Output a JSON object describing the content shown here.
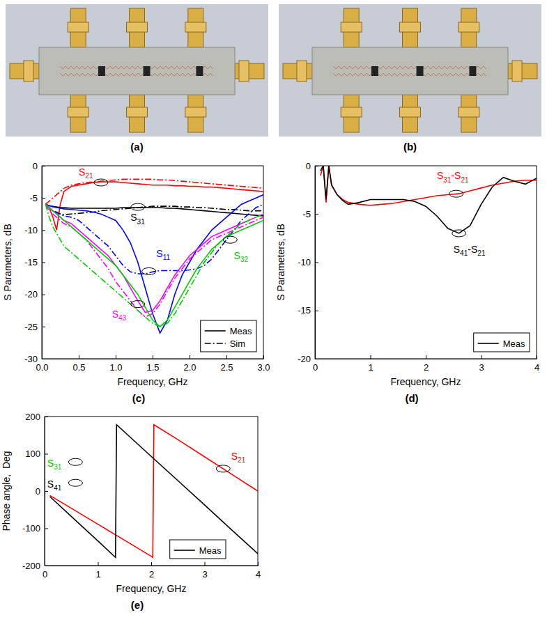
{
  "images": [
    {
      "label": "(a)"
    },
    {
      "label": "(b)"
    }
  ],
  "chart_data": [
    {
      "type": "line",
      "label": "(c)",
      "xlabel": "Frequency, GHz",
      "ylabel": "S Parameters, dB",
      "xlim": [
        0,
        3
      ],
      "ylim": [
        -30,
        0
      ],
      "xticks": [
        {
          "value": 0,
          "label": "0.0"
        },
        0.5,
        {
          "value": 1,
          "label": "1.0"
        },
        1.5,
        {
          "value": 2,
          "label": "2.0"
        },
        2.5,
        {
          "value": 3,
          "label": "3.0"
        }
      ],
      "yticks": [
        -30,
        -25,
        -20,
        -15,
        -10,
        -5,
        0
      ],
      "grid": false,
      "legend": "lower right",
      "legend_entries": [
        {
          "name": "Meas",
          "line_style": "solid"
        },
        {
          "name": "Sim",
          "line_style": "dashdot"
        }
      ],
      "x": [
        0.05,
        0.1,
        0.15,
        0.2,
        0.25,
        0.3,
        0.4,
        0.5,
        0.6,
        0.7,
        0.8,
        0.9,
        1.0,
        1.1,
        1.2,
        1.3,
        1.4,
        1.5,
        1.6,
        1.7,
        1.8,
        1.9,
        2.0,
        2.1,
        2.2,
        2.3,
        2.4,
        2.5,
        2.6,
        2.7,
        2.8,
        2.9,
        3.0
      ],
      "series": [
        {
          "color": "#ff0000",
          "line_style": "solid",
          "values": [
            -6,
            -6.5,
            -8,
            -10,
            -6,
            -4,
            -3.2,
            -3,
            -2.8,
            -2.6,
            -2.5,
            -2.5,
            -2.5,
            -2.6,
            -2.7,
            -2.8,
            -2.9,
            -3,
            -3,
            -3,
            -3.1,
            -3.1,
            -3.2,
            -3.2,
            -3.3,
            -3.3,
            -3.4,
            -3.5,
            -3.6,
            -3.7,
            -3.8,
            -3.9,
            -4
          ]
        },
        {
          "color": "#ff0000",
          "line_style": "dashdot",
          "values": [
            -6,
            -5.5,
            -5,
            -4.5,
            -4,
            -3.5,
            -3,
            -2.8,
            -2.6,
            -2.5,
            -2.4,
            -2.3,
            -2.2,
            -2.1,
            -2.1,
            -2.1,
            -2.1,
            -2.1,
            -2.2,
            -2.2,
            -2.3,
            -2.4,
            -2.5,
            -2.6,
            -2.7,
            -2.8,
            -2.9,
            -3,
            -3.1,
            -3.2,
            -3.3,
            -3.4,
            -3.5
          ]
        },
        {
          "color": "#000000",
          "line_style": "solid",
          "values": [
            -6,
            -6.2,
            -6.3,
            -6.4,
            -6.5,
            -6.5,
            -6.6,
            -6.6,
            -6.6,
            -6.6,
            -6.6,
            -6.6,
            -6.6,
            -6.5,
            -6.5,
            -6.5,
            -6.5,
            -6.5,
            -6.5,
            -6.6,
            -6.6,
            -6.7,
            -6.8,
            -6.9,
            -7,
            -7.1,
            -7.2,
            -7.3,
            -7.4,
            -7.5,
            -7.6,
            -7.7,
            -7.8
          ]
        },
        {
          "color": "#000000",
          "line_style": "dashdot",
          "values": [
            -6,
            -6.5,
            -7,
            -7.3,
            -7.5,
            -7.6,
            -7.5,
            -7.4,
            -7.3,
            -7.2,
            -7.0,
            -6.9,
            -6.8,
            -6.7,
            -6.6,
            -6.5,
            -6.4,
            -6.3,
            -6.3,
            -6.3,
            -6.3,
            -6.4,
            -6.4,
            -6.5,
            -6.5,
            -6.6,
            -6.7,
            -6.8,
            -6.8,
            -6.9,
            -7,
            -7,
            -7
          ]
        },
        {
          "color": "#0000ff",
          "line_style": "solid",
          "values": [
            -6,
            -6.2,
            -6.4,
            -6.5,
            -6.6,
            -6.7,
            -6.8,
            -6.9,
            -7,
            -7.2,
            -7.5,
            -8,
            -8.5,
            -10,
            -12,
            -15,
            -19,
            -23,
            -26,
            -24,
            -20,
            -17,
            -15,
            -13,
            -11.5,
            -10,
            -9,
            -8,
            -7,
            -6,
            -5.5,
            -5,
            -4.5
          ]
        },
        {
          "color": "#0000ff",
          "line_style": "dashdot",
          "values": [
            -6,
            -6.5,
            -7,
            -7.2,
            -7.5,
            -7.8,
            -8,
            -8.5,
            -9.5,
            -10.5,
            -11.5,
            -12.5,
            -14,
            -15.5,
            -16.5,
            -16.8,
            -16.8,
            -16.5,
            -16.3,
            -16.3,
            -16.3,
            -16.3,
            -16.2,
            -16,
            -15.5,
            -14.5,
            -13,
            -11.5,
            -10,
            -8.5,
            -7.5,
            -6.5,
            -6
          ]
        },
        {
          "color": "#ff00ff",
          "line_style": "solid",
          "values": [
            -6,
            -6.5,
            -7,
            -7.5,
            -8,
            -8.5,
            -9,
            -10,
            -11,
            -12,
            -13,
            -14,
            -15.5,
            -17,
            -19,
            -21,
            -22.8,
            -22.5,
            -21,
            -19,
            -17,
            -15.5,
            -14,
            -13,
            -12,
            -11,
            -10.5,
            -10,
            -9.5,
            -9,
            -8.5,
            -8,
            -7.5
          ]
        },
        {
          "color": "#ff00ff",
          "line_style": "dashdot",
          "values": [
            -6,
            -7,
            -7.5,
            -8,
            -8.5,
            -9,
            -9.5,
            -10.5,
            -11.5,
            -13,
            -14.5,
            -16,
            -18,
            -19.5,
            -21,
            -22.5,
            -23.5,
            -23,
            -21.5,
            -19.5,
            -17.5,
            -16,
            -14.5,
            -13.5,
            -12.5,
            -11.5,
            -11,
            -10.5,
            -10,
            -9.5,
            -9,
            -8.5,
            -8
          ]
        },
        {
          "color": "#00cc00",
          "line_style": "solid",
          "values": [
            -6,
            -6.5,
            -7,
            -7.5,
            -8,
            -8.5,
            -9.5,
            -10.5,
            -11.5,
            -12.5,
            -13.5,
            -14.5,
            -15.5,
            -17,
            -18.5,
            -20,
            -22,
            -24,
            -25,
            -24,
            -22,
            -20,
            -18,
            -16,
            -14.5,
            -13,
            -12,
            -11,
            -10.5,
            -10,
            -9.5,
            -9,
            -8.5
          ]
        },
        {
          "color": "#00cc00",
          "line_style": "dashdot",
          "values": [
            -6,
            -8,
            -9.5,
            -10.5,
            -11.5,
            -12.5,
            -13.5,
            -14.5,
            -15.5,
            -16.5,
            -17.5,
            -18.5,
            -19.5,
            -20.5,
            -21.5,
            -22.5,
            -23.5,
            -24.5,
            -25,
            -24.5,
            -23,
            -21,
            -19,
            -17,
            -15,
            -13.5,
            -12,
            -11,
            -10,
            -9,
            -8.5,
            -8,
            -7.5
          ]
        }
      ],
      "annotations": [
        {
          "text": "S21",
          "color": "#ff0000",
          "x": 0.8,
          "y": -2.6,
          "tx": 0.5,
          "ty": -1.5
        },
        {
          "text": "S31",
          "color": "#000000",
          "x": 1.3,
          "y": -6.4,
          "tx": 1.2,
          "ty": -8.6
        },
        {
          "text": "S11",
          "color": "#0000ff",
          "x": 1.45,
          "y": -16.4,
          "tx": 1.55,
          "ty": -14.2
        },
        {
          "text": "S43",
          "color": "#ff00ff",
          "x": 1.3,
          "y": -21.5,
          "tx": 0.95,
          "ty": -23.6
        },
        {
          "text": "S32",
          "color": "#00cc00",
          "x": 2.55,
          "y": -11.5,
          "tx": 2.6,
          "ty": -14.5
        }
      ]
    },
    {
      "type": "line",
      "label": "(d)",
      "xlabel": "Frequency, GHz",
      "ylabel": "S Parameters, dB",
      "xlim": [
        0,
        4
      ],
      "ylim": [
        -20,
        0
      ],
      "xticks": [
        0,
        1,
        2,
        3,
        4
      ],
      "yticks": [
        -20,
        -15,
        -10,
        -5,
        0
      ],
      "grid": false,
      "legend": "lower right",
      "legend_entries": [
        {
          "name": "Meas",
          "line_style": "solid"
        }
      ],
      "x": [
        0.1,
        0.15,
        0.2,
        0.25,
        0.3,
        0.4,
        0.5,
        0.6,
        0.8,
        1.0,
        1.2,
        1.4,
        1.6,
        1.8,
        2.0,
        2.2,
        2.4,
        2.6,
        2.8,
        3.0,
        3.2,
        3.4,
        3.6,
        3.8,
        4.0
      ],
      "series": [
        {
          "color": "#ff0000",
          "line_style": "solid",
          "values": [
            -1,
            0,
            -3.8,
            0,
            -2,
            -3,
            -3.5,
            -3.8,
            -4,
            -4.1,
            -4,
            -3.9,
            -3.7,
            -3.5,
            -3.3,
            -3.1,
            -3,
            -2.9,
            -2.6,
            -2.3,
            -2,
            -1.8,
            -1.6,
            -1.5,
            -1.5
          ]
        },
        {
          "color": "#000000",
          "line_style": "solid",
          "values": [
            -0.5,
            0,
            -3.5,
            0,
            -2,
            -3,
            -3.6,
            -4,
            -3.8,
            -3.5,
            -3.5,
            -3.5,
            -3.5,
            -3.7,
            -4.2,
            -5.2,
            -6.5,
            -7,
            -6.2,
            -4,
            -2.2,
            -1.2,
            -1.6,
            -1.9,
            -1.3
          ]
        }
      ],
      "annotations": [
        {
          "text": "S31-S21",
          "color": "#ff0000",
          "x": 2.55,
          "y": -2.9,
          "tx": 2.2,
          "ty": -1.4
        },
        {
          "text": "S41-S21",
          "color": "#000000",
          "x": 2.6,
          "y": -7,
          "tx": 2.5,
          "ty": -9
        }
      ]
    },
    {
      "type": "line",
      "label": "(e)",
      "xlabel": "Frequency, GHz",
      "ylabel": "Phase angle,  Deg",
      "xlim": [
        0,
        4
      ],
      "ylim": [
        -200,
        200
      ],
      "xticks": [
        0,
        1,
        2,
        3,
        4
      ],
      "yticks": [
        -200,
        -100,
        0,
        100,
        200
      ],
      "grid": false,
      "legend": "lower right",
      "legend_entries": [
        {
          "name": "Meas",
          "line_style": "solid"
        }
      ],
      "series": [
        {
          "color": "#ff0000",
          "line_style": "solid",
          "x": [
            0.1,
            0.5,
            1.0,
            1.5,
            2.0,
            2.03,
            2.05,
            2.5,
            3.0,
            3.5,
            4.0
          ],
          "values": [
            -12,
            -46,
            -89,
            -132,
            -175,
            -178,
            178,
            138,
            92,
            46,
            0
          ]
        },
        {
          "color": "#000000",
          "line_style": "solid",
          "x": [
            0.1,
            0.5,
            1.0,
            1.33,
            1.35,
            2.0,
            2.5,
            3.0,
            3.5,
            4.0
          ],
          "values": [
            -15,
            -68,
            -134,
            -178,
            178,
            93,
            28,
            -37,
            -103,
            -168
          ]
        }
      ],
      "annotations": [
        {
          "text": "S31",
          "color": "#00cc00",
          "x": 0.58,
          "y": 78,
          "tx": 0.05,
          "ty": 66
        },
        {
          "text": "S41",
          "color": "#000000",
          "x": 0.58,
          "y": 22,
          "tx": 0.05,
          "ty": 10
        },
        {
          "text": "S21",
          "color": "#ff0000",
          "x": 3.35,
          "y": 60,
          "tx": 3.5,
          "ty": 84
        }
      ]
    }
  ]
}
